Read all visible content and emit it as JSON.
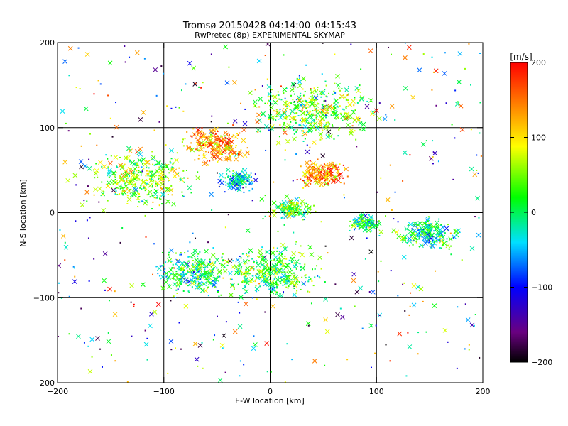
{
  "chart_data": {
    "type": "scatter",
    "title": "Tromsø 20150428 04:14:00–04:15:43",
    "subtitle": "RwPretec (8p) EXPERIMENTAL SKYMAP",
    "xlabel": "E-W location [km]",
    "ylabel": "N-S location [km]",
    "xlim": [
      -200,
      200
    ],
    "ylim": [
      -200,
      200
    ],
    "xticks": [
      "−200",
      "−100",
      "0",
      "100",
      "200"
    ],
    "yticks": [
      "−200",
      "−100",
      "0",
      "100",
      "200"
    ],
    "grid_lines": [
      -100,
      0,
      100
    ],
    "grid": true,
    "marker_types": [
      "cross (x)",
      "dot"
    ],
    "colorbar": {
      "label": "[m/s]",
      "range": [
        -200,
        200
      ],
      "ticks": [
        "200",
        "100",
        "0",
        "−100",
        "−200"
      ],
      "colormap": "rainbow (black-purple-blue-cyan-green-yellow-red)"
    },
    "clusters": [
      {
        "x": -30,
        "y": 38,
        "radius": 22,
        "velocity_mean": -20
      },
      {
        "x": 20,
        "y": 5,
        "radius": 25,
        "velocity_mean": 20
      },
      {
        "x": 88,
        "y": -12,
        "radius": 18,
        "velocity_mean": 0
      },
      {
        "x": 50,
        "y": 45,
        "radius": 30,
        "velocity_mean": 140
      },
      {
        "x": -50,
        "y": 80,
        "radius": 40,
        "velocity_mean": 130
      },
      {
        "x": 0,
        "y": -70,
        "radius": 60,
        "velocity_mean": 20
      },
      {
        "x": 150,
        "y": -25,
        "radius": 35,
        "velocity_mean": -10
      },
      {
        "x": -120,
        "y": 40,
        "radius": 60,
        "velocity_mean": 50
      },
      {
        "x": 40,
        "y": 120,
        "radius": 70,
        "velocity_mean": 40
      },
      {
        "x": -70,
        "y": -70,
        "radius": 50,
        "velocity_mean": 0
      }
    ],
    "sample_points": [
      {
        "x": -125,
        "y": 188,
        "v": 130,
        "marker": "x"
      },
      {
        "x": -108,
        "y": 168,
        "v": -150,
        "marker": "x"
      },
      {
        "x": -42,
        "y": 195,
        "v": 20,
        "marker": "x"
      },
      {
        "x": -72,
        "y": 170,
        "v": 40,
        "marker": "x"
      },
      {
        "x": 100,
        "y": 120,
        "v": 200,
        "marker": "x"
      },
      {
        "x": 55,
        "y": 95,
        "v": -200,
        "marker": "x"
      },
      {
        "x": -170,
        "y": 52,
        "v": -10,
        "marker": "x"
      },
      {
        "x": -105,
        "y": -108,
        "v": 200,
        "marker": "x"
      },
      {
        "x": 95,
        "y": -46,
        "v": -200,
        "marker": "x"
      },
      {
        "x": 190,
        "y": -42,
        "v": -20,
        "marker": "x"
      },
      {
        "x": 195,
        "y": 17,
        "v": -10,
        "marker": "x"
      },
      {
        "x": 155,
        "y": 70,
        "v": -130,
        "marker": "x"
      },
      {
        "x": -42,
        "y": -188,
        "v": -160,
        "marker": "dot"
      },
      {
        "x": -128,
        "y": -108,
        "v": 200,
        "marker": "dot"
      }
    ]
  }
}
